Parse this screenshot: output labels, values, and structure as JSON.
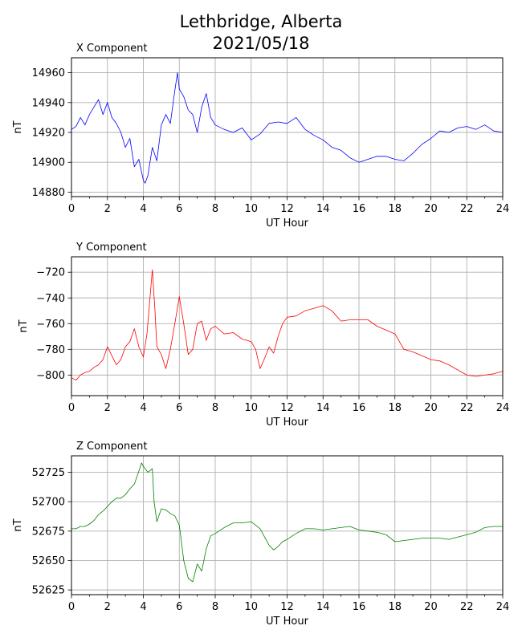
{
  "figure": {
    "title_line1": "Lethbridge, Alberta",
    "title_line2": "2021/05/18"
  },
  "chart_data": [
    {
      "type": "line",
      "title": "X Component",
      "xlabel": "UT Hour",
      "ylabel": "nT",
      "xlim": [
        0,
        24
      ],
      "ylim": [
        14877,
        14970
      ],
      "xticks": [
        0,
        2,
        4,
        6,
        8,
        10,
        12,
        14,
        16,
        18,
        20,
        22,
        24
      ],
      "yticks": [
        14880,
        14900,
        14920,
        14940,
        14960
      ],
      "grid": true,
      "color": "#0000ff",
      "x": [
        0,
        0.25,
        0.5,
        0.75,
        1,
        1.25,
        1.5,
        1.75,
        2,
        2.25,
        2.5,
        2.75,
        3,
        3.25,
        3.5,
        3.75,
        4,
        4.1,
        4.25,
        4.5,
        4.75,
        5,
        5.25,
        5.5,
        5.75,
        5.9,
        6,
        6.25,
        6.5,
        6.75,
        7,
        7.25,
        7.5,
        7.75,
        8,
        8.5,
        9,
        9.5,
        10,
        10.5,
        11,
        11.5,
        12,
        12.5,
        13,
        13.5,
        14,
        14.5,
        15,
        15.5,
        16,
        16.5,
        17,
        17.5,
        18,
        18.5,
        19,
        19.5,
        20,
        20.5,
        21,
        21.5,
        22,
        22.5,
        23,
        23.5,
        24
      ],
      "y": [
        14922,
        14924,
        14930,
        14925,
        14932,
        14937,
        14942,
        14932,
        14940,
        14930,
        14926,
        14920,
        14910,
        14916,
        14897,
        14902,
        14888,
        14886,
        14891,
        14910,
        14901,
        14925,
        14932,
        14926,
        14948,
        14960,
        14949,
        14944,
        14935,
        14932,
        14920,
        14937,
        14946,
        14930,
        14925,
        14922,
        14920,
        14923,
        14915,
        14919,
        14926,
        14927,
        14926,
        14930,
        14922,
        14918,
        14915,
        14910,
        14908,
        14903,
        14900,
        14902,
        14904,
        14904,
        14902,
        14901,
        14906,
        14912,
        14916,
        14921,
        14920,
        14923,
        14924,
        14922,
        14925,
        14921,
        14920
      ]
    },
    {
      "type": "line",
      "title": "Y Component",
      "xlabel": "UT Hour",
      "ylabel": "nT",
      "xlim": [
        0,
        24
      ],
      "ylim": [
        -816,
        -708
      ],
      "xticks": [
        0,
        2,
        4,
        6,
        8,
        10,
        12,
        14,
        16,
        18,
        20,
        22,
        24
      ],
      "yticks": [
        -800,
        -780,
        -760,
        -740,
        -720
      ],
      "grid": true,
      "color": "#ff0000",
      "x": [
        0,
        0.25,
        0.5,
        0.75,
        1,
        1.25,
        1.5,
        1.75,
        2,
        2.25,
        2.5,
        2.75,
        3,
        3.25,
        3.5,
        3.75,
        4,
        4.2,
        4.5,
        4.65,
        4.75,
        5,
        5.25,
        5.5,
        5.75,
        6,
        6.25,
        6.5,
        6.75,
        7,
        7.25,
        7.5,
        7.75,
        8,
        8.5,
        9,
        9.5,
        10,
        10.25,
        10.5,
        10.75,
        11,
        11.25,
        11.5,
        11.75,
        12,
        12.5,
        13,
        13.5,
        14,
        14.5,
        15,
        15.5,
        16,
        16.5,
        17,
        17.5,
        18,
        18.5,
        19,
        19.5,
        20,
        20.5,
        21,
        21.5,
        22,
        22.5,
        23,
        23.5,
        24
      ],
      "y": [
        -802,
        -804,
        -800,
        -798,
        -797,
        -794,
        -792,
        -788,
        -778,
        -785,
        -792,
        -788,
        -778,
        -774,
        -764,
        -778,
        -786,
        -768,
        -718,
        -750,
        -778,
        -784,
        -795,
        -780,
        -760,
        -739,
        -760,
        -784,
        -780,
        -760,
        -758,
        -773,
        -764,
        -762,
        -768,
        -767,
        -772,
        -774,
        -780,
        -795,
        -787,
        -778,
        -783,
        -770,
        -760,
        -755,
        -754,
        -750,
        -748,
        -746,
        -750,
        -758,
        -757,
        -757,
        -757,
        -762,
        -765,
        -768,
        -780,
        -782,
        -785,
        -788,
        -789,
        -792,
        -796,
        -800,
        -801,
        -800,
        -799,
        -797
      ]
    },
    {
      "type": "line",
      "title": "Z Component",
      "xlabel": "UT Hour",
      "ylabel": "nT",
      "xlim": [
        0,
        24
      ],
      "ylim": [
        52621,
        52739
      ],
      "xticks": [
        0,
        2,
        4,
        6,
        8,
        10,
        12,
        14,
        16,
        18,
        20,
        22,
        24
      ],
      "yticks": [
        52625,
        52650,
        52675,
        52700,
        52725
      ],
      "grid": true,
      "color": "#008000",
      "x": [
        0,
        0.25,
        0.5,
        0.75,
        1,
        1.25,
        1.5,
        1.75,
        2,
        2.25,
        2.5,
        2.75,
        3,
        3.25,
        3.5,
        3.75,
        3.9,
        4,
        4.25,
        4.5,
        4.6,
        4.75,
        5,
        5.25,
        5.5,
        5.75,
        6,
        6.25,
        6.5,
        6.75,
        7,
        7.25,
        7.5,
        7.75,
        8,
        8.5,
        9,
        9.5,
        10,
        10.5,
        11,
        11.25,
        11.5,
        11.75,
        12,
        12.5,
        13,
        13.5,
        14,
        14.5,
        15,
        15.5,
        16,
        16.5,
        17,
        17.5,
        18,
        18.5,
        19,
        19.5,
        20,
        20.5,
        21,
        21.5,
        22,
        22.5,
        23,
        23.5,
        24
      ],
      "y": [
        52677,
        52677,
        52679,
        52679,
        52681,
        52684,
        52689,
        52692,
        52696,
        52700,
        52703,
        52703,
        52706,
        52711,
        52715,
        52726,
        52733,
        52730,
        52725,
        52728,
        52700,
        52683,
        52694,
        52693,
        52690,
        52688,
        52680,
        52650,
        52635,
        52632,
        52647,
        52641,
        52660,
        52671,
        52673,
        52678,
        52682,
        52682,
        52683,
        52677,
        52663,
        52659,
        52662,
        52666,
        52668,
        52673,
        52677,
        52677,
        52676,
        52677,
        52678,
        52679,
        52676,
        52675,
        52674,
        52672,
        52666,
        52667,
        52668,
        52669,
        52669,
        52669,
        52668,
        52670,
        52672,
        52674,
        52678,
        52679,
        52679
      ]
    }
  ]
}
